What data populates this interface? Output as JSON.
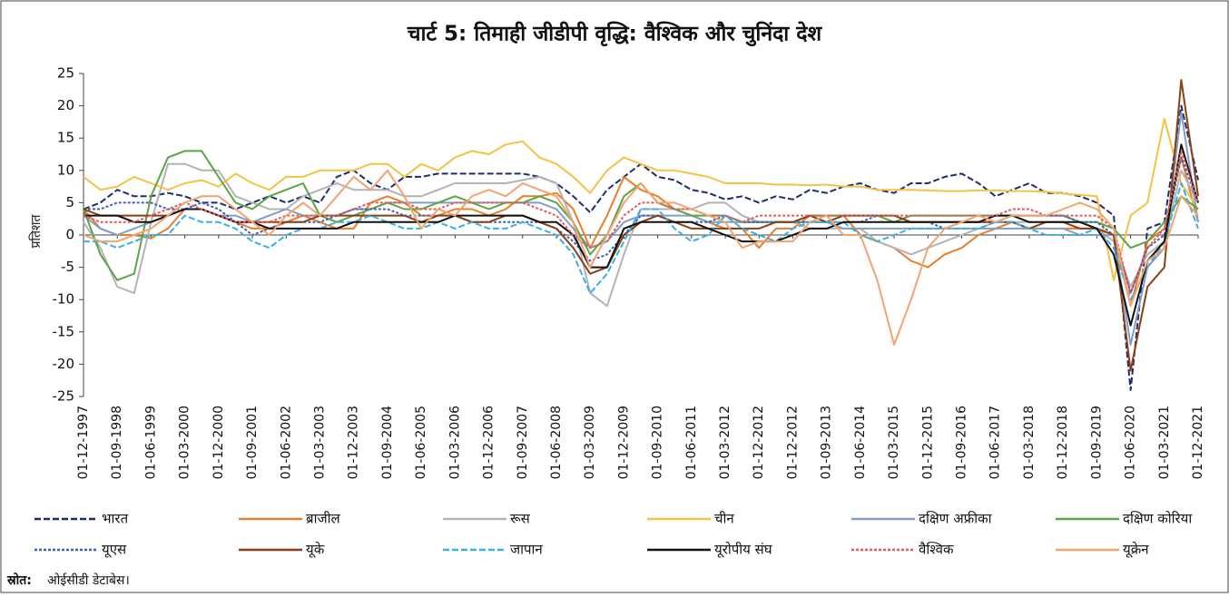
{
  "chart_data": {
    "type": "line",
    "title": "चार्ट 5: तिमाही जीडीपी वृद्धि: वैश्विक और चुनिंदा देश",
    "y_label": "प्रतिशत",
    "source_label": "स्रोत:",
    "source_text": "ओईसीडी डेटाबेस।",
    "ylim": [
      -25,
      25
    ],
    "yticks": [
      -25,
      -20,
      -15,
      -10,
      -5,
      0,
      5,
      10,
      15,
      20,
      25
    ],
    "categories": [
      "01-12-1997",
      null,
      "01-09-1998",
      null,
      "01-06-1999",
      null,
      "01-03-2000",
      null,
      "01-12-2000",
      null,
      "01-09-2001",
      null,
      "01-06-2002",
      null,
      "01-03-2003",
      null,
      "01-12-2003",
      null,
      "01-09-2004",
      null,
      "01-06-2005",
      null,
      "01-03-2006",
      null,
      "01-12-2006",
      null,
      "01-09-2007",
      null,
      "01-06-2008",
      null,
      "01-03-2009",
      null,
      "01-12-2009",
      null,
      "01-09-2010",
      null,
      "01-06-2011",
      null,
      "01-03-2012",
      null,
      "01-12-2012",
      null,
      "01-12-2012",
      null,
      "01-09-2013",
      null,
      "01-06-2014",
      null,
      "01-03-2015",
      null,
      "01-12-2015",
      null,
      "01-09-2016",
      null,
      "01-06-2017",
      null,
      "01-03-2018",
      null,
      "01-12-2018",
      null,
      "01-09-2019",
      null,
      "01-06-2020",
      null,
      "01-03-2021",
      null,
      "01-12-2021"
    ],
    "series": [
      {
        "name": "भारत",
        "color": "#1f2d6b",
        "dash": "dashed",
        "values": [
          4,
          5,
          7,
          6,
          6,
          6.5,
          6,
          5,
          5,
          4,
          5,
          6,
          5,
          6,
          5,
          9,
          10,
          8,
          7,
          9,
          9,
          9.5,
          9.5,
          9.5,
          9.5,
          9.5,
          9.5,
          9,
          8,
          6,
          3.5,
          7,
          9,
          11,
          9,
          8.5,
          7,
          6.5,
          5.5,
          6,
          5,
          6,
          5.5,
          7,
          6.5,
          7.5,
          8,
          7,
          6.5,
          8,
          8,
          9,
          9.5,
          8,
          6,
          7,
          8,
          6.5,
          6.5,
          6,
          5,
          3,
          -24,
          1,
          2,
          20,
          8.5
        ]
      },
      {
        "name": "ब्राजील",
        "color": "#e87d2a",
        "dash": "solid",
        "values": [
          4,
          1,
          0,
          0,
          -0.5,
          1,
          4,
          4,
          3,
          2,
          1,
          1,
          2,
          3,
          2,
          1,
          1,
          5,
          6,
          5,
          3,
          3,
          4,
          4,
          3,
          4,
          6,
          6,
          6.5,
          4,
          -2,
          3,
          9,
          7,
          6,
          4,
          3,
          2,
          1,
          1,
          -2,
          1,
          1,
          3,
          3,
          3,
          0,
          -1,
          -2,
          -4,
          -5,
          -3,
          -2,
          0,
          1,
          2,
          1,
          1,
          1,
          1,
          1,
          0,
          -11,
          -1,
          1,
          12,
          2
        ]
      },
      {
        "name": "रूस",
        "color": "#b3b3b3",
        "dash": "solid",
        "values": [
          2,
          -2,
          -8,
          -9,
          2,
          11,
          11,
          10,
          10,
          6,
          5,
          4,
          4,
          6,
          7,
          8,
          7,
          7,
          7,
          6,
          6,
          7,
          8,
          8,
          8,
          8,
          8.5,
          9,
          8,
          2,
          -9,
          -11,
          -3,
          4,
          4,
          4,
          4,
          5,
          5,
          3,
          2,
          2,
          2,
          1,
          1,
          1,
          1,
          -1,
          -2,
          -3,
          -2,
          -1,
          0,
          1,
          2,
          2,
          2,
          2,
          2,
          2,
          1,
          -1,
          -8,
          -3,
          -1,
          10,
          5
        ]
      },
      {
        "name": "चीन",
        "color": "#f5c242",
        "dash": "solid",
        "values": [
          9,
          7,
          7.5,
          9,
          8,
          7,
          8,
          8.5,
          7.5,
          9.5,
          8,
          7,
          9,
          9,
          10,
          10,
          10,
          11,
          11,
          9,
          11,
          10,
          12,
          13,
          12.5,
          14,
          14.5,
          12,
          11,
          9,
          6.5,
          10,
          12,
          11,
          10,
          10,
          9.5,
          9,
          8,
          8,
          8,
          7.8,
          7.8,
          7.7,
          7.8,
          7.5,
          7.5,
          7,
          7,
          7,
          6.9,
          6.8,
          6.8,
          6.9,
          6.9,
          6.8,
          6.8,
          6.7,
          6.4,
          6.2,
          6,
          -7,
          3,
          5,
          18,
          8,
          4
        ]
      },
      {
        "name": "दक्षिण अफ्रीका",
        "color": "#7f9fc9",
        "dash": "solid",
        "values": [
          3,
          1,
          0,
          1,
          2,
          3,
          4,
          4,
          3,
          3,
          2,
          3,
          4,
          3,
          3,
          3,
          4,
          4,
          5,
          5,
          5,
          5,
          5,
          5,
          5,
          5,
          5,
          5,
          4,
          1,
          -2,
          -1,
          2,
          3,
          3,
          3,
          3,
          2,
          2,
          2,
          2,
          2,
          2,
          2,
          2,
          1,
          1,
          1,
          1,
          1,
          1,
          1,
          1,
          1,
          1,
          1,
          1,
          1,
          1,
          0,
          0,
          0,
          -17,
          -5,
          -2,
          19,
          2
        ]
      },
      {
        "name": "दक्षिण कोरिया",
        "color": "#5aa545",
        "dash": "solid",
        "values": [
          4,
          -3,
          -7,
          -6,
          6,
          12,
          13,
          13,
          9,
          5,
          4,
          6,
          7,
          8,
          3,
          2,
          3,
          4,
          5,
          4,
          4,
          5,
          6,
          5,
          4,
          5,
          5,
          6,
          5,
          2,
          -3,
          0,
          6,
          8,
          5,
          4,
          3,
          3,
          3,
          2,
          2,
          2,
          2,
          3,
          3,
          3,
          3,
          3,
          2,
          3,
          3,
          3,
          3,
          3,
          3,
          3,
          3,
          3,
          3,
          2,
          2,
          1,
          -2,
          -1,
          2,
          6,
          4
        ]
      },
      {
        "name": "यूएस",
        "color": "#3f60b5",
        "dash": "dotted",
        "values": [
          4,
          4,
          5,
          5,
          5,
          4,
          4,
          5,
          4,
          2,
          0,
          1,
          2,
          2,
          2,
          3,
          4,
          4,
          4,
          3,
          3,
          3,
          3,
          2,
          2,
          2,
          2,
          2,
          1,
          -1,
          -4,
          -3,
          0,
          3,
          3,
          2,
          2,
          2,
          3,
          2,
          2,
          2,
          2,
          2,
          2,
          2,
          2,
          3,
          3,
          2,
          2,
          1,
          2,
          2,
          2,
          3,
          3,
          3,
          3,
          2,
          2,
          0,
          -9,
          -2,
          0,
          12,
          5
        ]
      },
      {
        "name": "यूके",
        "color": "#8b3f14",
        "dash": "solid",
        "values": [
          4,
          3,
          3,
          3,
          3,
          3,
          4,
          4,
          3,
          2,
          2,
          2,
          2,
          2,
          3,
          3,
          3,
          3,
          3,
          3,
          2,
          3,
          3,
          2,
          2,
          3,
          3,
          2,
          1,
          -2,
          -6,
          -5,
          0,
          2,
          3,
          2,
          1,
          1,
          1,
          1,
          1,
          2,
          2,
          3,
          2,
          3,
          3,
          3,
          3,
          2,
          2,
          2,
          2,
          2,
          2,
          2,
          1,
          2,
          2,
          1,
          1,
          0,
          -21,
          -8,
          -5,
          24,
          6
        ]
      },
      {
        "name": "जापान",
        "color": "#3ab0e0",
        "dash": "dashed",
        "values": [
          -1,
          -1,
          -2,
          -1,
          0,
          0,
          3,
          2,
          2,
          1,
          -1,
          -2,
          0,
          1,
          1,
          2,
          2,
          3,
          2,
          1,
          1,
          2,
          1,
          2,
          1,
          1,
          2,
          1,
          0,
          -3,
          -9,
          -6,
          -1,
          4,
          4,
          1,
          -1,
          0,
          3,
          1,
          0,
          -1,
          1,
          2,
          2,
          2,
          0,
          -1,
          0,
          1,
          1,
          1,
          1,
          1,
          2,
          2,
          1,
          0,
          0,
          0,
          1,
          -2,
          -10,
          -5,
          -1,
          8,
          1
        ]
      },
      {
        "name": "यूरोपीय संघ",
        "color": "#111111",
        "dash": "solid",
        "values": [
          3,
          3,
          3,
          2,
          2,
          3,
          4,
          4,
          3,
          2,
          2,
          1,
          1,
          1,
          1,
          1,
          2,
          2,
          2,
          2,
          2,
          2,
          3,
          3,
          3,
          3,
          3,
          2,
          2,
          0,
          -5,
          -5,
          1,
          2,
          2,
          2,
          2,
          1,
          0,
          -1,
          -1,
          -1,
          0,
          1,
          1,
          2,
          2,
          2,
          2,
          2,
          2,
          2,
          2,
          2,
          3,
          3,
          2,
          2,
          2,
          2,
          1,
          -3,
          -14,
          -4,
          -1,
          14,
          5
        ]
      },
      {
        "name": "वैश्विक",
        "color": "#e35a5a",
        "dash": "dotted",
        "values": [
          3,
          2,
          2,
          2,
          3,
          4,
          5,
          4,
          3,
          2,
          2,
          2,
          3,
          3,
          3,
          3,
          4,
          5,
          5,
          5,
          4,
          4,
          5,
          5,
          5,
          5,
          5,
          4,
          3,
          0,
          -2,
          -1,
          3,
          5,
          5,
          4,
          4,
          3,
          3,
          2,
          3,
          3,
          3,
          3,
          3,
          3,
          3,
          3,
          3,
          3,
          3,
          3,
          3,
          3,
          3,
          4,
          4,
          3,
          3,
          3,
          3,
          1,
          -9,
          -2,
          1,
          13,
          5
        ]
      },
      {
        "name": "यूक्रेन",
        "color": "#f2a46f",
        "dash": "solid",
        "values": [
          0,
          -1,
          -1,
          0,
          1,
          3,
          5,
          6,
          6,
          4,
          2,
          0,
          3,
          5,
          3,
          6,
          9,
          7,
          10,
          6,
          1,
          4,
          3,
          6,
          7,
          6,
          8,
          7,
          6,
          2,
          -5,
          0,
          5,
          8,
          5,
          5,
          4,
          3,
          2,
          -2,
          -1,
          -1,
          -1,
          2,
          3,
          0,
          0,
          -7,
          -17,
          -10,
          -2,
          1,
          2,
          3,
          2,
          3,
          3,
          3,
          4,
          5,
          4,
          1,
          -11,
          -4,
          -2,
          6,
          3
        ]
      }
    ]
  }
}
